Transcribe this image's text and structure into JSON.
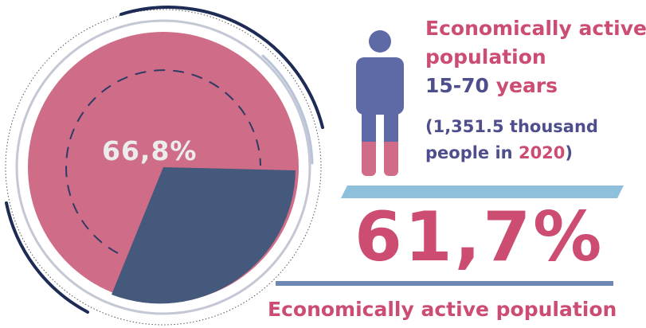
{
  "pie": {
    "label": "66,8%",
    "value_percent": 66.8,
    "colors": {
      "main": "#cf6d88",
      "slice": "#45597c",
      "arc": "#1e2b55"
    }
  },
  "person": {
    "icon": "person-icon",
    "fill_fraction_pink": 0.25,
    "colors": {
      "top": "#5d6aa6",
      "bottom": "#d06c88"
    }
  },
  "heading": {
    "line1": "Economically active",
    "line2": "population",
    "range": "15-70",
    "years": "years"
  },
  "sub": {
    "open": "(1,351.5 thousand",
    "people_in": "people in ",
    "year": "2020",
    "close": ")"
  },
  "big_value": "61,7%",
  "footer": "Economically active population",
  "accent_colors": {
    "pink": "#cc4c72",
    "navy": "#4e4e8c",
    "stripe": "#8ec0dc",
    "rule": "#6e88b4"
  }
}
